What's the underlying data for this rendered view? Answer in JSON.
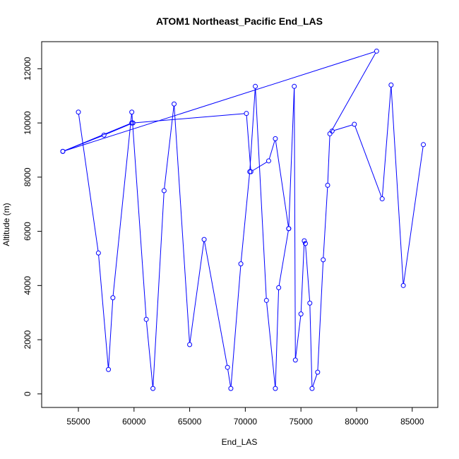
{
  "chart_data": {
    "type": "line",
    "title": "ATOM1 Northeast_Pacific End_LAS",
    "xlabel": "End_LAS",
    "ylabel": "Altitude (m)",
    "xlim": [
      51700,
      87300
    ],
    "ylim": [
      -500,
      13000
    ],
    "x_ticks": [
      55000,
      60000,
      65000,
      70000,
      75000,
      80000,
      85000
    ],
    "x_tick_labels": [
      "55000",
      "60000",
      "65000",
      "70000",
      "75000",
      "80000",
      "85000"
    ],
    "y_ticks": [
      0,
      2000,
      4000,
      6000,
      8000,
      10000,
      12000
    ],
    "y_tick_labels": [
      "0",
      "2000",
      "4000",
      "6000",
      "8000",
      "10000",
      "12000"
    ],
    "grid": false,
    "series": [
      {
        "color": "#0000ff",
        "marker": "open-circle",
        "points": [
          [
            55000,
            10400
          ],
          [
            56800,
            5200
          ],
          [
            57700,
            900
          ],
          [
            58100,
            3550
          ],
          [
            59800,
            10400
          ],
          [
            61100,
            2750
          ],
          [
            61700,
            200
          ],
          [
            62700,
            7500
          ],
          [
            63600,
            10700
          ],
          [
            65000,
            1820
          ],
          [
            66300,
            5700
          ],
          [
            68400,
            980
          ],
          [
            68700,
            200
          ],
          [
            69600,
            4800
          ],
          [
            70400,
            8200
          ],
          [
            70900,
            11350
          ],
          [
            71900,
            3450
          ],
          [
            72700,
            200
          ],
          [
            73000,
            3920
          ],
          [
            73900,
            6100
          ],
          [
            74400,
            11350
          ],
          [
            74500,
            1250
          ],
          [
            75000,
            2950
          ],
          [
            75300,
            5650
          ],
          [
            75400,
            5550
          ],
          [
            75800,
            3350
          ],
          [
            76000,
            200
          ],
          [
            76500,
            800
          ],
          [
            77000,
            4950
          ],
          [
            77400,
            7700
          ],
          [
            77600,
            9600
          ],
          [
            81800,
            12650
          ],
          [
            53600,
            8950
          ],
          [
            57300,
            9550
          ],
          [
            59900,
            10000
          ],
          [
            70100,
            10350
          ],
          [
            70500,
            8200
          ],
          [
            72100,
            8600
          ],
          [
            72700,
            9420
          ],
          [
            73900,
            6100
          ]
        ]
      },
      {
        "color": "#0000ff",
        "marker": "open-circle",
        "points": [
          [
            77800,
            9700
          ],
          [
            79800,
            9950
          ],
          [
            82300,
            7200
          ],
          [
            83100,
            11400
          ],
          [
            84200,
            4000
          ],
          [
            86000,
            9200
          ]
        ]
      },
      {
        "color": "#0000ff",
        "marker": "open-circle",
        "points": [
          [
            53600,
            8950
          ],
          [
            59800,
            10000
          ]
        ]
      }
    ]
  }
}
